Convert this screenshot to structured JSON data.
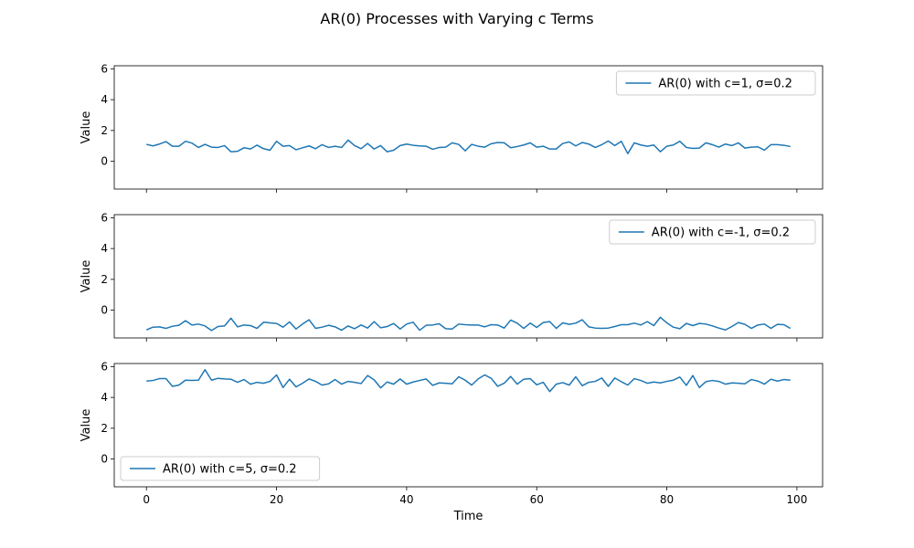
{
  "figure": {
    "title": "AR(0) Processes with Varying c Terms"
  },
  "chart_data": [
    {
      "type": "line",
      "xlabel": "",
      "ylabel": "Value",
      "xlim": [
        -4.95,
        103.95
      ],
      "ylim": [
        -1.8,
        6.2
      ],
      "xticks": [
        0,
        20,
        40,
        60,
        80,
        100
      ],
      "show_xtick_labels": false,
      "yticks": [
        0,
        2,
        4,
        6
      ],
      "legend_position": "upper-right",
      "series": [
        {
          "name": "AR(0) with c=1, σ=0.2",
          "color": "#1f77b4",
          "x": [
            0,
            1,
            2,
            3,
            4,
            5,
            6,
            7,
            8,
            9,
            10,
            11,
            12,
            13,
            14,
            15,
            16,
            17,
            18,
            19,
            20,
            21,
            22,
            23,
            24,
            25,
            26,
            27,
            28,
            29,
            30,
            31,
            32,
            33,
            34,
            35,
            36,
            37,
            38,
            39,
            40,
            41,
            42,
            43,
            44,
            45,
            46,
            47,
            48,
            49,
            50,
            51,
            52,
            53,
            54,
            55,
            56,
            57,
            58,
            59,
            60,
            61,
            62,
            63,
            64,
            65,
            66,
            67,
            68,
            69,
            70,
            71,
            72,
            73,
            74,
            75,
            76,
            77,
            78,
            79,
            80,
            81,
            82,
            83,
            84,
            85,
            86,
            87,
            88,
            89,
            90,
            91,
            92,
            93,
            94,
            95,
            96,
            97,
            98,
            99
          ],
          "y": [
            1.1,
            1.0,
            1.12,
            1.28,
            0.98,
            0.98,
            1.3,
            1.18,
            0.9,
            1.1,
            0.92,
            0.9,
            1.02,
            0.62,
            0.65,
            0.88,
            0.8,
            1.05,
            0.82,
            0.72,
            1.3,
            0.98,
            1.02,
            0.75,
            0.88,
            1.0,
            0.82,
            1.08,
            0.9,
            0.98,
            0.9,
            1.38,
            1.02,
            0.82,
            1.16,
            0.8,
            1.02,
            0.62,
            0.72,
            1.02,
            1.12,
            1.04,
            1.0,
            0.98,
            0.78,
            0.9,
            0.92,
            1.2,
            1.1,
            0.68,
            1.1,
            0.98,
            0.92,
            1.14,
            1.22,
            1.2,
            0.88,
            0.96,
            1.06,
            1.2,
            0.92,
            0.98,
            0.8,
            0.8,
            1.16,
            1.26,
            1.0,
            1.22,
            1.12,
            0.9,
            1.08,
            1.32,
            1.02,
            1.3,
            0.5,
            1.2,
            1.06,
            0.98,
            1.06,
            0.62,
            0.98,
            1.06,
            1.3,
            0.9,
            0.84,
            0.86,
            1.2,
            1.08,
            0.92,
            1.12,
            1.02,
            1.2,
            0.86,
            0.92,
            0.94,
            0.72,
            1.08,
            1.08,
            1.04,
            0.96
          ]
        }
      ]
    },
    {
      "type": "line",
      "xlabel": "",
      "ylabel": "Value",
      "xlim": [
        -4.95,
        103.95
      ],
      "ylim": [
        -1.8,
        6.2
      ],
      "xticks": [
        0,
        20,
        40,
        60,
        80,
        100
      ],
      "show_xtick_labels": false,
      "yticks": [
        0,
        2,
        4,
        6
      ],
      "legend_position": "upper-right",
      "series": [
        {
          "name": "AR(0) with c=-1, σ=0.2",
          "color": "#1f77b4",
          "x": [
            0,
            1,
            2,
            3,
            4,
            5,
            6,
            7,
            8,
            9,
            10,
            11,
            12,
            13,
            14,
            15,
            16,
            17,
            18,
            19,
            20,
            21,
            22,
            23,
            24,
            25,
            26,
            27,
            28,
            29,
            30,
            31,
            32,
            33,
            34,
            35,
            36,
            37,
            38,
            39,
            40,
            41,
            42,
            43,
            44,
            45,
            46,
            47,
            48,
            49,
            50,
            51,
            52,
            53,
            54,
            55,
            56,
            57,
            58,
            59,
            60,
            61,
            62,
            63,
            64,
            65,
            66,
            67,
            68,
            69,
            70,
            71,
            72,
            73,
            74,
            75,
            76,
            77,
            78,
            79,
            80,
            81,
            82,
            83,
            84,
            85,
            86,
            87,
            88,
            89,
            90,
            91,
            92,
            93,
            94,
            95,
            96,
            97,
            98,
            99
          ],
          "y": [
            -1.28,
            -1.1,
            -1.08,
            -1.18,
            -1.04,
            -0.98,
            -0.68,
            -0.96,
            -0.9,
            -1.02,
            -1.32,
            -1.06,
            -1.02,
            -0.52,
            -1.08,
            -0.96,
            -1.0,
            -1.18,
            -0.78,
            -0.82,
            -0.86,
            -1.1,
            -0.76,
            -1.22,
            -0.9,
            -0.62,
            -1.18,
            -1.1,
            -0.98,
            -1.08,
            -1.3,
            -1.02,
            -1.2,
            -0.96,
            -1.16,
            -0.74,
            -1.14,
            -1.06,
            -0.86,
            -1.22,
            -0.9,
            -0.78,
            -1.3,
            -0.98,
            -0.96,
            -0.88,
            -1.2,
            -1.22,
            -0.9,
            -0.94,
            -0.96,
            -0.96,
            -1.08,
            -0.94,
            -0.96,
            -1.16,
            -0.64,
            -0.84,
            -1.18,
            -0.84,
            -1.12,
            -0.8,
            -0.74,
            -1.18,
            -0.82,
            -0.92,
            -0.84,
            -0.62,
            -1.08,
            -1.16,
            -1.18,
            -1.16,
            -1.06,
            -0.94,
            -0.94,
            -0.84,
            -0.96,
            -0.74,
            -1.0,
            -0.46,
            -0.82,
            -1.1,
            -1.2,
            -0.86,
            -1.0,
            -0.86,
            -0.9,
            -1.02,
            -1.16,
            -1.28,
            -1.06,
            -0.8,
            -0.92,
            -1.18,
            -0.96,
            -0.9,
            -1.18,
            -0.92,
            -0.94,
            -1.18
          ]
        }
      ]
    },
    {
      "type": "line",
      "xlabel": "Time",
      "ylabel": "Value",
      "xlim": [
        -4.95,
        103.95
      ],
      "ylim": [
        -1.8,
        6.2
      ],
      "xticks": [
        0,
        20,
        40,
        60,
        80,
        100
      ],
      "show_xtick_labels": true,
      "yticks": [
        0,
        2,
        4,
        6
      ],
      "legend_position": "lower-left",
      "series": [
        {
          "name": "AR(0) with c=5, σ=0.2",
          "color": "#1f77b4",
          "x": [
            0,
            1,
            2,
            3,
            4,
            5,
            6,
            7,
            8,
            9,
            10,
            11,
            12,
            13,
            14,
            15,
            16,
            17,
            18,
            19,
            20,
            21,
            22,
            23,
            24,
            25,
            26,
            27,
            28,
            29,
            30,
            31,
            32,
            33,
            34,
            35,
            36,
            37,
            38,
            39,
            40,
            41,
            42,
            43,
            44,
            45,
            46,
            47,
            48,
            49,
            50,
            51,
            52,
            53,
            54,
            55,
            56,
            57,
            58,
            59,
            60,
            61,
            62,
            63,
            64,
            65,
            66,
            67,
            68,
            69,
            70,
            71,
            72,
            73,
            74,
            75,
            76,
            77,
            78,
            79,
            80,
            81,
            82,
            83,
            84,
            85,
            86,
            87,
            88,
            89,
            90,
            91,
            92,
            93,
            94,
            95,
            96,
            97,
            98,
            99
          ],
          "y": [
            5.06,
            5.1,
            5.22,
            5.22,
            4.72,
            4.8,
            5.12,
            5.1,
            5.12,
            5.8,
            5.12,
            5.24,
            5.2,
            5.18,
            4.98,
            5.16,
            4.86,
            4.98,
            4.92,
            5.04,
            5.46,
            4.64,
            5.18,
            4.68,
            4.92,
            5.2,
            5.04,
            4.8,
            4.88,
            5.16,
            4.86,
            5.04,
            4.98,
            4.9,
            5.42,
            5.14,
            4.62,
            5.0,
            4.86,
            5.2,
            4.86,
            5.0,
            5.1,
            5.2,
            4.78,
            4.94,
            4.92,
            4.88,
            5.34,
            5.12,
            4.8,
            5.2,
            5.46,
            5.24,
            4.72,
            4.92,
            5.36,
            4.86,
            5.18,
            5.22,
            4.82,
            4.98,
            4.38,
            4.86,
            4.96,
            4.8,
            5.34,
            4.76,
            4.98,
            5.04,
            5.26,
            4.72,
            5.26,
            5.02,
            4.8,
            5.22,
            5.1,
            4.92,
            5.0,
            4.94,
            5.04,
            5.12,
            5.32,
            4.78,
            5.42,
            4.64,
            5.02,
            5.1,
            5.04,
            4.86,
            4.94,
            4.92,
            4.88,
            5.16,
            5.06,
            4.86,
            5.18,
            5.06,
            5.16,
            5.12
          ]
        }
      ]
    }
  ]
}
